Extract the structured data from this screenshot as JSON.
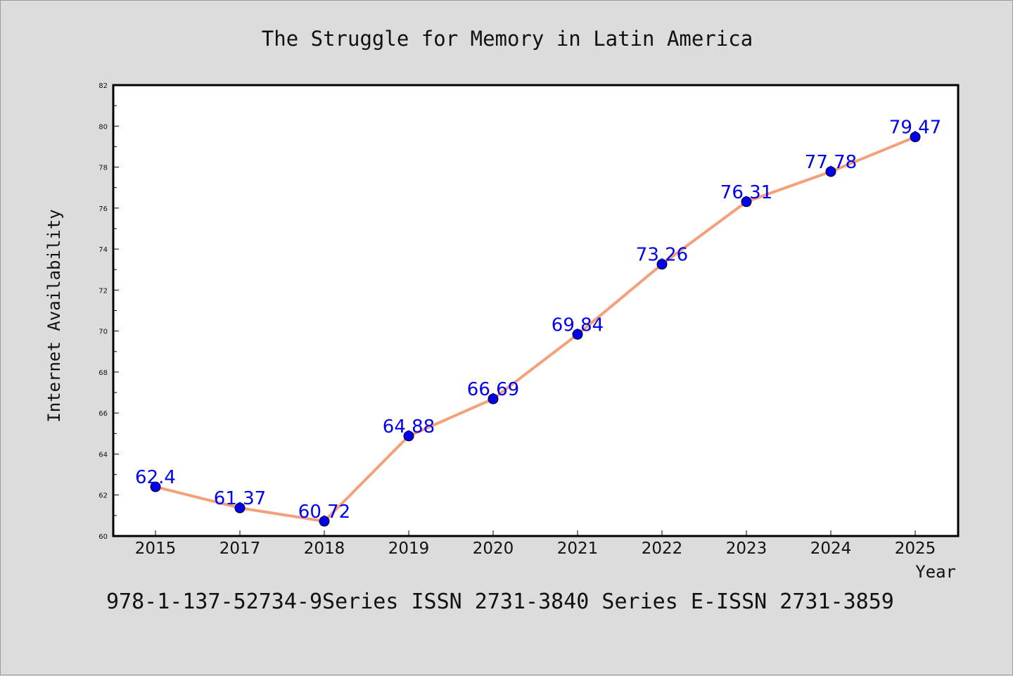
{
  "chart_data": {
    "type": "line",
    "title": "The Struggle for Memory in Latin America",
    "xlabel": "Year",
    "ylabel": "Internet Availability",
    "categories": [
      "2015",
      "2017",
      "2018",
      "2019",
      "2020",
      "2021",
      "2022",
      "2023",
      "2024",
      "2025"
    ],
    "series": [
      {
        "values": [
          62.4,
          61.37,
          60.72,
          64.88,
          66.69,
          69.84,
          73.26,
          76.31,
          77.78,
          79.47
        ],
        "data_labels": [
          "62.4",
          "61.37",
          "60.72",
          "64.88",
          "66.69",
          "69.84",
          "73.26",
          "76.31",
          "77.78",
          "79.47"
        ],
        "line_color": "#f4a07a",
        "marker_color": "#0000ee"
      }
    ],
    "ylim": [
      60,
      82
    ],
    "yticks": [
      "60",
      "62",
      "64",
      "66",
      "68",
      "70",
      "72",
      "74",
      "76",
      "78",
      "80",
      "82"
    ],
    "grid": false,
    "legend": "none",
    "label_color": "#0000ee",
    "background": "#dcdcdc",
    "plot_background": "#ffffff"
  },
  "footer": "978-1-137-52734-9Series ISSN 2731-3840 Series E-ISSN 2731-3859"
}
